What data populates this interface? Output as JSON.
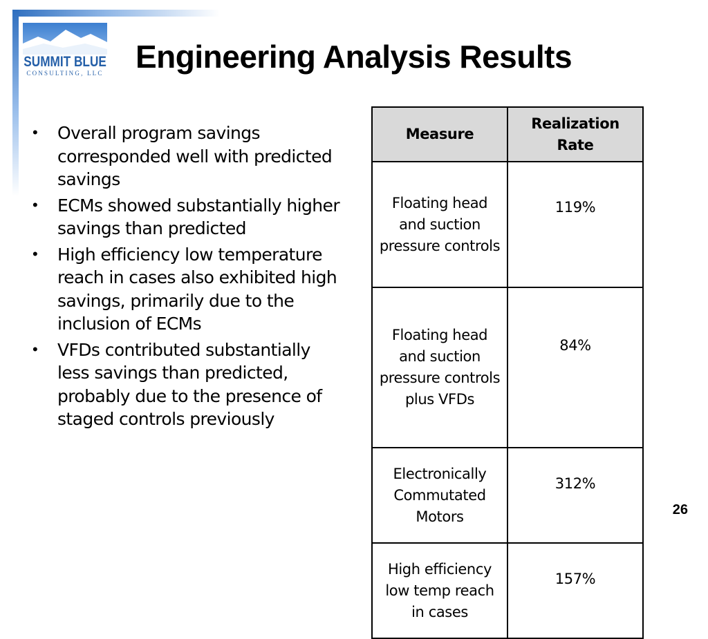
{
  "logo": {
    "name": "SUMMIT BLUE",
    "subtitle": "CONSULTING, LLC"
  },
  "title": "Engineering Analysis Results",
  "bullets": [
    "Overall program savings corresponded well with predicted savings",
    "ECMs showed substantially higher savings than predicted",
    "High efficiency low temperature reach in cases also exhibited high savings, primarily due to the inclusion of ECMs",
    "VFDs contributed substantially less savings than predicted, probably due to the presence of staged controls previously"
  ],
  "table": {
    "headers": {
      "measure": "Measure",
      "rate": "Realization Rate"
    },
    "rows": [
      {
        "measure": "Floating head and suction pressure controls",
        "rate": "119%"
      },
      {
        "measure": "Floating head and suction pressure controls plus VFDs",
        "rate": "84%"
      },
      {
        "measure": "Electronically Commutated Motors",
        "rate": "312%"
      },
      {
        "measure": "High efficiency low temp reach in cases",
        "rate": "157%"
      }
    ]
  },
  "page_number": "26",
  "colors": {
    "brand_blue": "#245fa8",
    "header_fill": "#d9d9d9"
  }
}
